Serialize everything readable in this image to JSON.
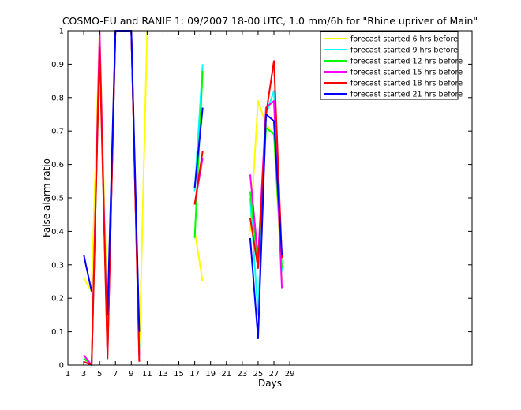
{
  "chart_data": {
    "type": "line",
    "title": "COSMO-EU and RANIE 1: 09/2007 18-00 UTC, 1.0 mm/6h for \"Rhine upriver of Main\"",
    "xlabel": "Days",
    "ylabel": "False alarm ratio",
    "xlim": [
      1,
      52
    ],
    "ylim": [
      0,
      1
    ],
    "xticks": [
      1,
      3,
      5,
      7,
      9,
      11,
      13,
      15,
      17,
      19,
      21,
      23,
      25,
      27,
      29
    ],
    "yticks": [
      0,
      0.1,
      0.2,
      0.3,
      0.4,
      0.5,
      0.6,
      0.7,
      0.8,
      0.9,
      1
    ],
    "ytick_labels": [
      "0",
      "0.1",
      "0.2",
      "0.3",
      "0.4",
      "0.5",
      "0.6",
      "0.7",
      "0.8",
      "0.9",
      "1"
    ],
    "grid": false,
    "legend_position": "top-right",
    "series": [
      {
        "name": "forecast started  6 hrs before",
        "color": "#ffff00",
        "values": [
          [
            3,
            0.26
          ],
          [
            4,
            0.22
          ],
          [
            5,
            1.0
          ],
          [
            6,
            0.13
          ],
          [
            7,
            1.0
          ],
          [
            8,
            1.0
          ],
          [
            9,
            1.0
          ],
          [
            10,
            0.04
          ],
          [
            11,
            1.0
          ],
          null,
          [
            17,
            0.4
          ],
          [
            18,
            0.25
          ],
          null,
          [
            24,
            0.4
          ],
          [
            25,
            0.79
          ],
          [
            26,
            0.72
          ],
          [
            27,
            0.69
          ],
          [
            28,
            0.25
          ]
        ]
      },
      {
        "name": "forecast started  9 hrs before",
        "color": "#00ffff",
        "values": [
          [
            3,
            0.01
          ],
          [
            4,
            0.0
          ],
          [
            5,
            0.95
          ],
          [
            6,
            0.05
          ],
          [
            7,
            1.0
          ],
          [
            8,
            1.0
          ],
          [
            9,
            1.0
          ],
          [
            10,
            0.05
          ],
          null,
          [
            17,
            0.52
          ],
          [
            18,
            0.9
          ],
          null,
          [
            24,
            0.5
          ],
          [
            25,
            0.15
          ],
          [
            26,
            0.75
          ],
          [
            27,
            0.82
          ],
          [
            28,
            0.28
          ]
        ]
      },
      {
        "name": "forecast started 12 hrs before",
        "color": "#00ff00",
        "values": [
          [
            3,
            0.02
          ],
          [
            4,
            0.0
          ],
          [
            5,
            0.96
          ],
          [
            6,
            0.04
          ],
          [
            7,
            1.0
          ],
          [
            8,
            1.0
          ],
          [
            9,
            1.0
          ],
          [
            10,
            0.04
          ],
          null,
          [
            17,
            0.38
          ],
          [
            18,
            0.88
          ],
          null,
          [
            24,
            0.52
          ],
          [
            25,
            0.29
          ],
          [
            26,
            0.71
          ],
          [
            27,
            0.69
          ],
          [
            28,
            0.29
          ]
        ]
      },
      {
        "name": "forecast started 15 hrs before",
        "color": "#ff00ff",
        "values": [
          [
            3,
            0.03
          ],
          [
            4,
            0.0
          ],
          [
            5,
            1.0
          ],
          [
            6,
            0.03
          ],
          [
            7,
            1.0
          ],
          [
            8,
            1.0
          ],
          [
            9,
            1.0
          ],
          [
            10,
            0.03
          ],
          null,
          [
            17,
            0.48
          ],
          [
            18,
            0.62
          ],
          null,
          [
            24,
            0.57
          ],
          [
            25,
            0.32
          ],
          [
            26,
            0.77
          ],
          [
            27,
            0.79
          ],
          [
            28,
            0.23
          ]
        ]
      },
      {
        "name": "forecast started 18 hrs before",
        "color": "#ff0000",
        "values": [
          [
            3,
            0.01
          ],
          [
            4,
            0.0
          ],
          [
            5,
            0.95
          ],
          [
            6,
            0.02
          ],
          [
            7,
            1.0
          ],
          [
            8,
            1.0
          ],
          [
            9,
            1.0
          ],
          [
            10,
            0.01
          ],
          null,
          [
            17,
            0.48
          ],
          [
            18,
            0.64
          ],
          null,
          [
            24,
            0.44
          ],
          [
            25,
            0.29
          ],
          [
            26,
            0.75
          ],
          [
            27,
            0.91
          ],
          [
            28,
            0.32
          ]
        ]
      },
      {
        "name": "forecast started 21 hrs before",
        "color": "#0000ff",
        "values": [
          [
            3,
            0.33
          ],
          [
            4,
            0.22
          ],
          null,
          [
            6,
            0.15
          ],
          [
            7,
            1.0
          ],
          [
            8,
            1.0
          ],
          [
            9,
            1.0
          ],
          [
            10,
            0.1
          ],
          null,
          [
            17,
            0.53
          ],
          [
            18,
            0.77
          ],
          null,
          [
            24,
            0.38
          ],
          [
            25,
            0.08
          ],
          [
            26,
            0.75
          ],
          [
            27,
            0.73
          ],
          [
            28,
            0.33
          ]
        ]
      }
    ]
  }
}
